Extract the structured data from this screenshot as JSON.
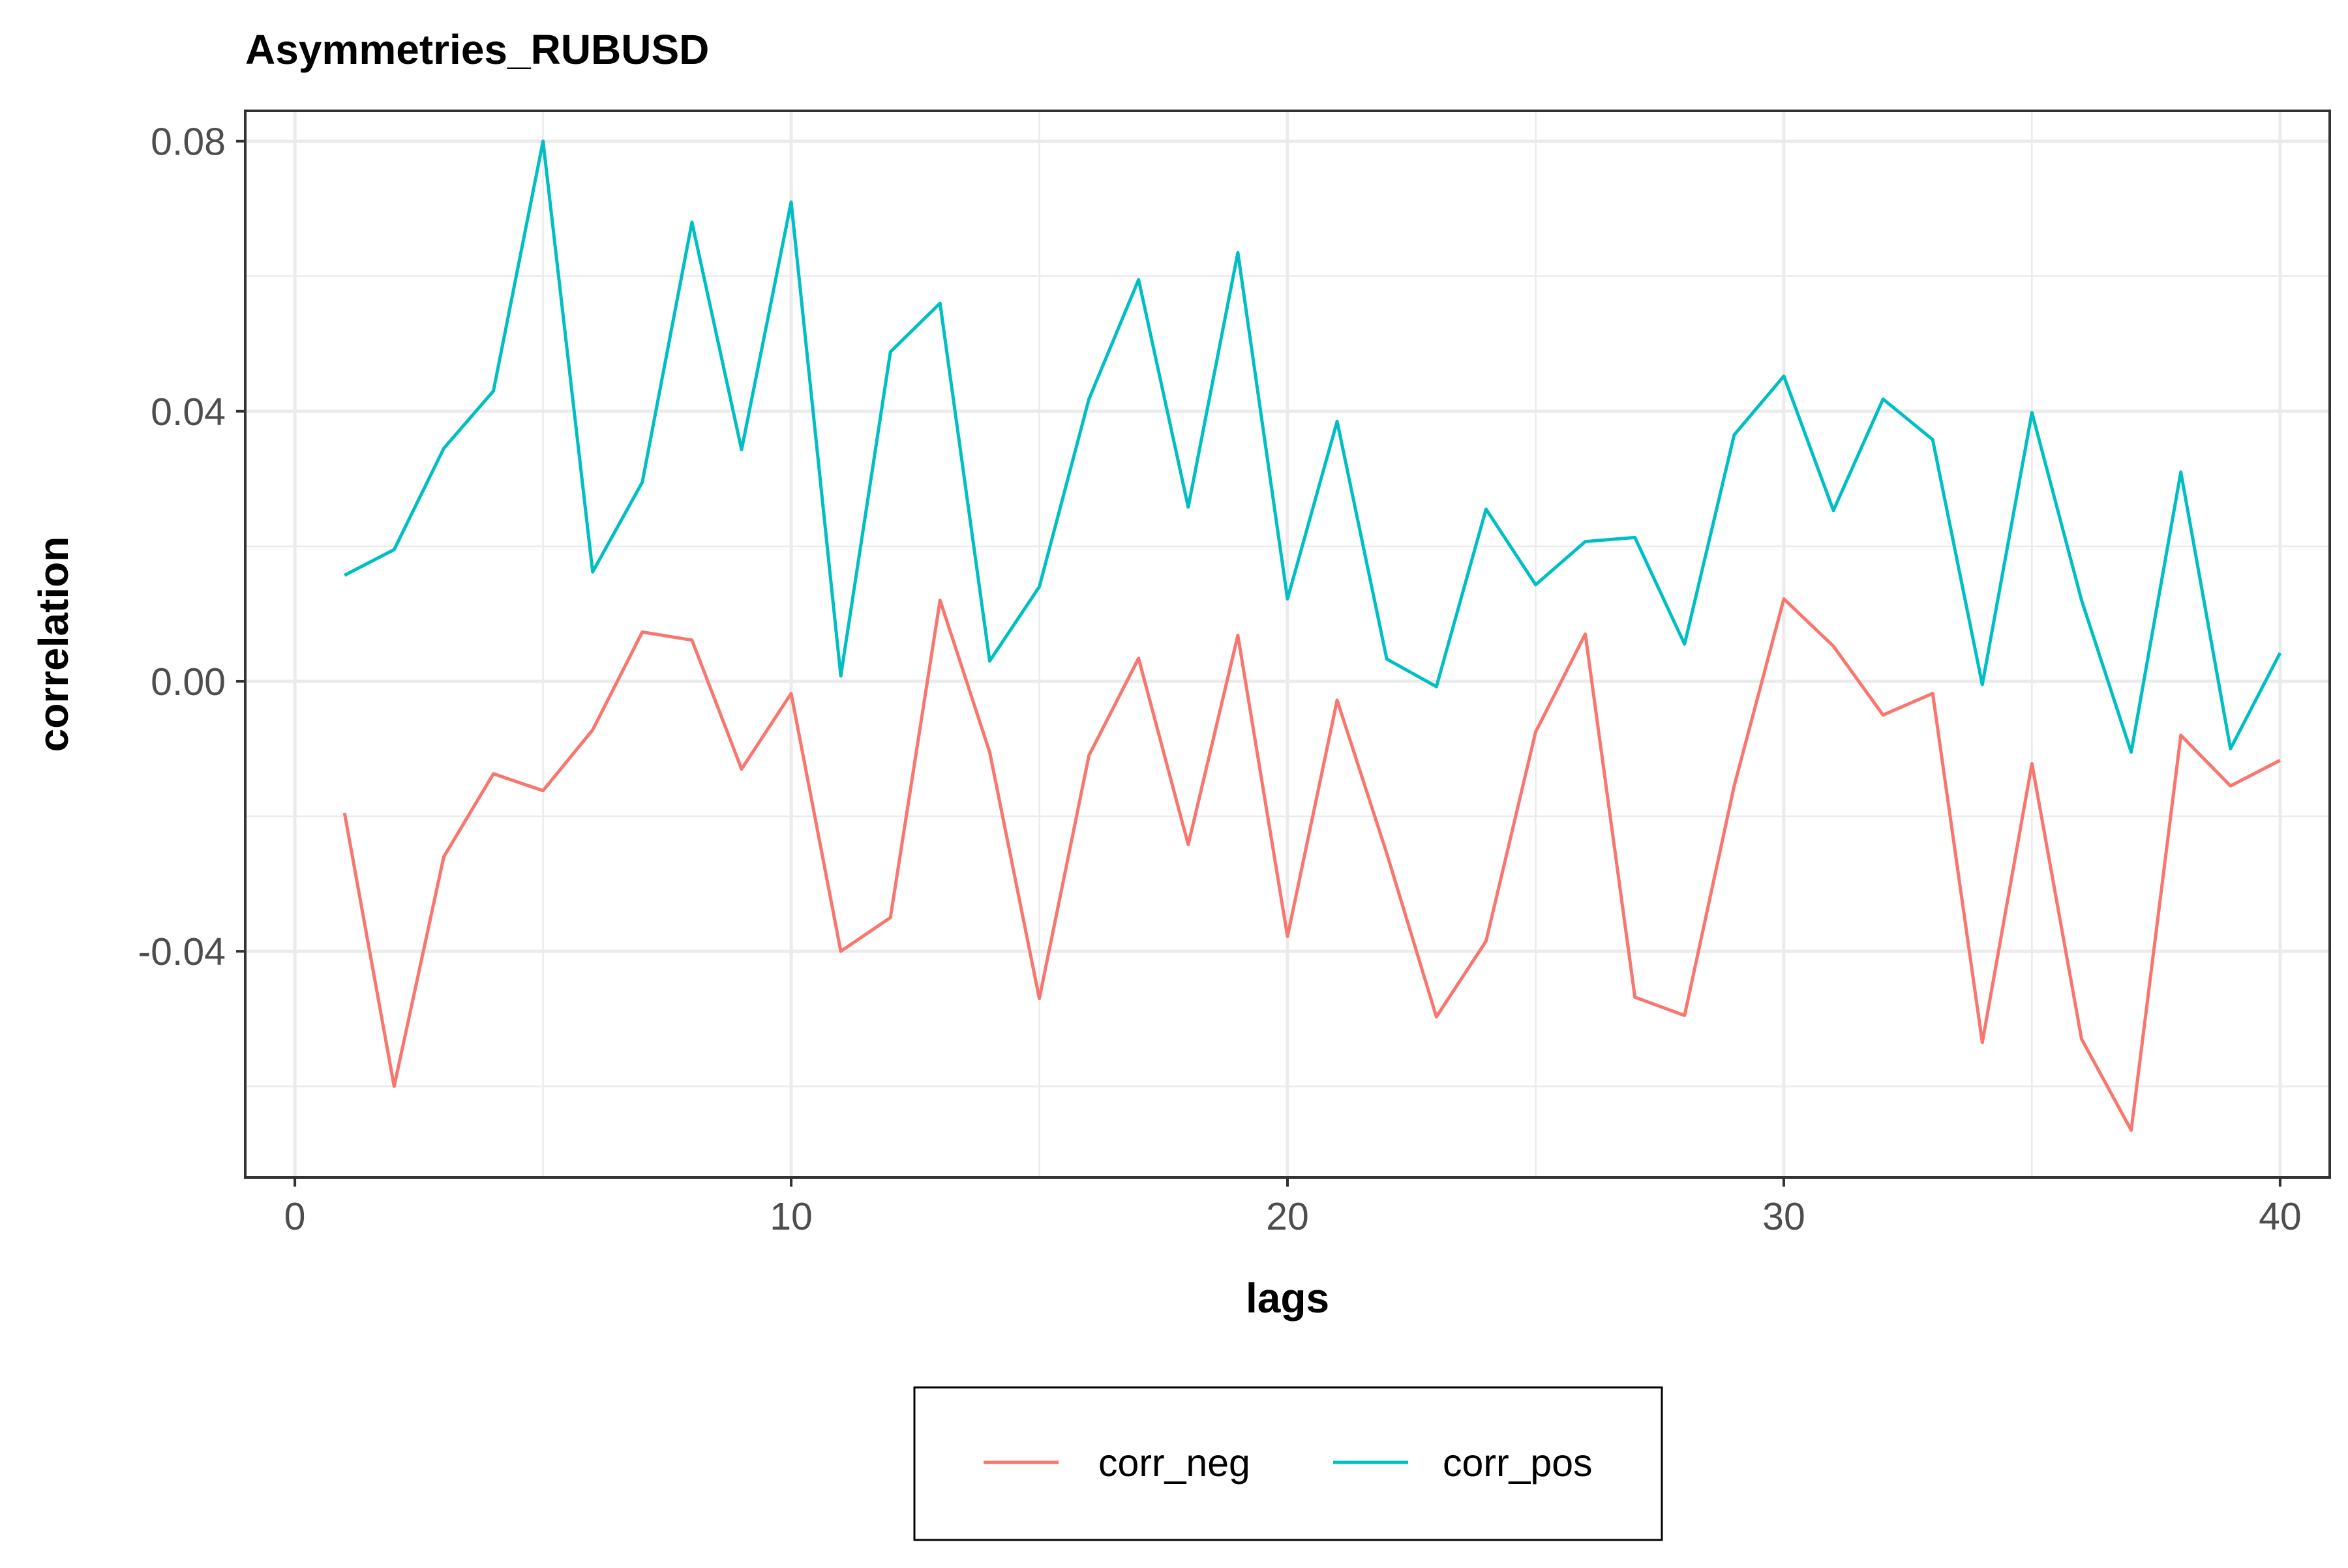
{
  "chart_data": {
    "type": "line",
    "title": "Asymmetries_RUBUSD",
    "xlabel": "lags",
    "ylabel": "correlation",
    "xlim": [
      -1,
      41
    ],
    "ylim": [
      -0.0735,
      0.0845
    ],
    "x_ticks": [
      0,
      10,
      20,
      30,
      40
    ],
    "x_tick_labels": [
      "0",
      "10",
      "20",
      "30",
      "40"
    ],
    "y_ticks": [
      -0.04,
      0.0,
      0.04,
      0.08
    ],
    "y_tick_labels": [
      "-0.04",
      "0.00",
      "0.04",
      "0.08"
    ],
    "x_minor": [
      5,
      15,
      25,
      35
    ],
    "y_minor": [
      -0.06,
      -0.02,
      0.02,
      0.06
    ],
    "grid": true,
    "legend_position": "bottom",
    "x": [
      1,
      2,
      3,
      4,
      5,
      6,
      7,
      8,
      9,
      10,
      11,
      12,
      13,
      14,
      15,
      16,
      17,
      18,
      19,
      20,
      21,
      22,
      23,
      24,
      25,
      26,
      27,
      28,
      29,
      30,
      31,
      32,
      33,
      34,
      35,
      36,
      37,
      38,
      39,
      40
    ],
    "series": [
      {
        "name": "corr_neg",
        "color": "#F8766D",
        "values": [
          -0.0195,
          -0.06,
          -0.026,
          -0.0137,
          -0.0162,
          -0.0072,
          0.0073,
          0.0061,
          -0.013,
          -0.0018,
          -0.04,
          -0.035,
          0.012,
          -0.0105,
          -0.047,
          -0.011,
          0.0034,
          -0.0242,
          0.0068,
          -0.0378,
          -0.0028,
          -0.0255,
          -0.0497,
          -0.0385,
          -0.0075,
          0.007,
          -0.0468,
          -0.0495,
          -0.0155,
          0.0122,
          0.0052,
          -0.005,
          -0.0018,
          -0.0535,
          -0.0122,
          -0.053,
          -0.0665,
          -0.008,
          -0.0155,
          -0.0117
        ]
      },
      {
        "name": "corr_pos",
        "color": "#00BFC4",
        "values": [
          0.0157,
          0.0195,
          0.0345,
          0.043,
          0.08,
          0.0162,
          0.0295,
          0.068,
          0.0343,
          0.071,
          0.0008,
          0.0488,
          0.056,
          0.003,
          0.014,
          0.0418,
          0.0595,
          0.0258,
          0.0635,
          0.0122,
          0.0385,
          0.0033,
          -0.0008,
          0.0255,
          0.0143,
          0.0207,
          0.0213,
          0.0055,
          0.0365,
          0.0452,
          0.0253,
          0.0418,
          0.0358,
          -0.0005,
          0.0398,
          0.012,
          -0.0105,
          0.031,
          -0.01,
          0.0042
        ]
      }
    ]
  }
}
